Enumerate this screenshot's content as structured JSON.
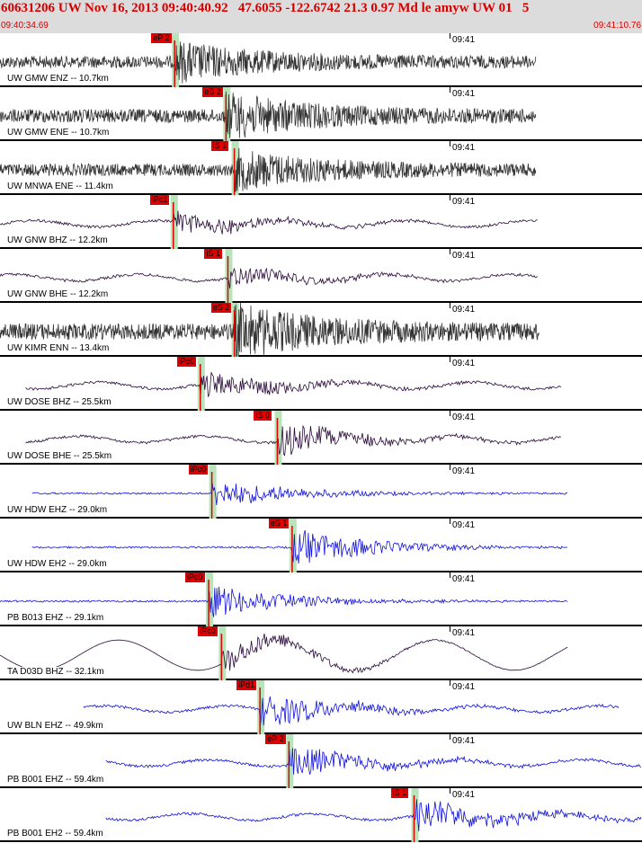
{
  "header": {
    "title": "60631206 UW Nov 16, 2013 09:40:40.92   47.6055 -122.6742 21.3 0.97 Md le amyw UW 01   5",
    "start_time": "09:40:34.69",
    "end_time": "09:41:10.76"
  },
  "colors": {
    "header_bg": "#dcdcdc",
    "header_text": "#d40000",
    "pick": "#e00000",
    "phase_band": "#b9e3b9",
    "trace_dark": "#333333",
    "trace_purple": "#2a0a3a",
    "trace_blue": "#1010e0"
  },
  "traces": [
    {
      "label": "UW GMW ENZ -- 10.7km",
      "time": "09:41",
      "pick": "eP 2",
      "style": "noise",
      "color": "dark",
      "start": 0.0,
      "end": 0.835,
      "onset": 0.272,
      "amp": 0.45
    },
    {
      "label": "UW GMW ENE -- 10.7km",
      "time": "09:41",
      "pick": "eS 2",
      "style": "noise",
      "color": "dark",
      "start": 0.0,
      "end": 0.835,
      "onset": 0.352,
      "amp": 0.5
    },
    {
      "label": "UW MNWA ENE -- 11.4km",
      "time": "09:41",
      "pick": "iS 1",
      "style": "noise",
      "color": "dark",
      "start": 0.0,
      "end": 0.835,
      "onset": 0.365,
      "amp": 0.45
    },
    {
      "label": "UW GNW BHZ -- 12.2km",
      "time": "09:41",
      "pick": "iPc1",
      "style": "wave",
      "color": "purple",
      "start": 0.0,
      "end": 0.838,
      "onset": 0.27,
      "amp": 0.3
    },
    {
      "label": "UW GNW BHE -- 12.2km",
      "time": "09:41",
      "pick": "iS 1",
      "style": "wave",
      "color": "purple",
      "start": 0.0,
      "end": 0.838,
      "onset": 0.355,
      "amp": 0.25
    },
    {
      "label": "UW KIMR ENN -- 13.4km",
      "time": "09:41",
      "pick": "eS 2",
      "style": "noise",
      "color": "dark",
      "start": 0.0,
      "end": 0.84,
      "onset": 0.365,
      "amp": 0.6
    },
    {
      "label": "UW DOSE BHZ -- 25.5km",
      "time": "09:41",
      "pick": "iPc0",
      "style": "wave",
      "color": "purple",
      "start": 0.04,
      "end": 0.875,
      "onset": 0.312,
      "amp": 0.35
    },
    {
      "label": "UW DOSE BHE -- 25.5km",
      "time": "09:41",
      "pick": "iS 0",
      "style": "wave",
      "color": "purple",
      "start": 0.04,
      "end": 0.875,
      "onset": 0.432,
      "amp": 0.4
    },
    {
      "label": "UW HDW EHZ -- 29.0km",
      "time": "09:41",
      "pick": "iPc0",
      "style": "flat",
      "color": "blue",
      "start": 0.05,
      "end": 0.885,
      "onset": 0.33,
      "amp": 0.35
    },
    {
      "label": "UW HDW EH2 -- 29.0km",
      "time": "09:41",
      "pick": "eS 1",
      "style": "flat",
      "color": "blue",
      "start": 0.05,
      "end": 0.885,
      "onset": 0.455,
      "amp": 0.45
    },
    {
      "label": "PB B013 EHZ -- 29.1km",
      "time": "09:41",
      "pick": "iPc0",
      "style": "flat",
      "color": "blue",
      "start": 0.0,
      "end": 0.885,
      "onset": 0.325,
      "amp": 0.4
    },
    {
      "label": "TA D03D BHZ -- 32.1km",
      "time": "09:41",
      "pick": "iPc0",
      "style": "swell",
      "color": "purple",
      "start": 0.0,
      "end": 0.885,
      "onset": 0.345,
      "amp": 0.35
    },
    {
      "label": "UW BLN EHZ -- 49.9km",
      "time": "09:41",
      "pick": "iPd1",
      "style": "wave",
      "color": "blue",
      "start": 0.13,
      "end": 0.965,
      "onset": 0.405,
      "amp": 0.4
    },
    {
      "label": "PB B001 EHZ -- 59.4km",
      "time": "09:41",
      "pick": "eP 2",
      "style": "wave",
      "color": "blue",
      "start": 0.165,
      "end": 1.0,
      "onset": 0.45,
      "amp": 0.4
    },
    {
      "label": "PB B001 EH2 -- 59.4km",
      "time": "09:41",
      "pick": "iS 1",
      "style": "wave",
      "color": "blue",
      "start": 0.165,
      "end": 1.0,
      "onset": 0.645,
      "amp": 0.45
    }
  ]
}
